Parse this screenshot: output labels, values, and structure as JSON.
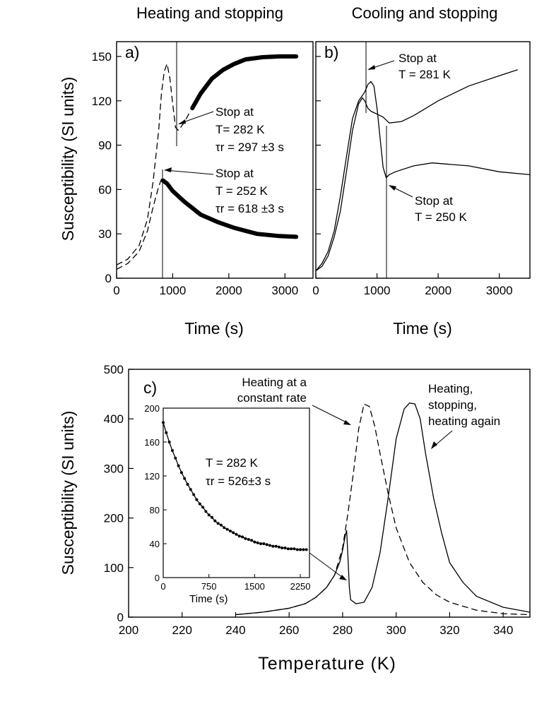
{
  "panels_titles": {
    "left": "Heating and stopping",
    "right": "Cooling and stopping"
  },
  "chart_data": [
    {
      "panel": "a)",
      "type": "line",
      "xlabel": "Time (s)",
      "ylabel": "Susceptibility (SI units)",
      "xlim": [
        0,
        3500
      ],
      "ylim": [
        0,
        160
      ],
      "xticks": [
        "0",
        "1000",
        "2000",
        "3000"
      ],
      "yticks": [
        "0",
        "30",
        "60",
        "90",
        "120",
        "150"
      ],
      "series": [
        {
          "style": "dashed",
          "x": [
            0,
            200,
            400,
            550,
            650,
            750,
            800,
            850,
            900,
            950,
            1000,
            1050,
            1100,
            1200,
            1300
          ],
          "y": [
            9,
            13,
            22,
            40,
            65,
            100,
            125,
            140,
            145,
            135,
            118,
            102,
            100,
            105,
            112
          ]
        },
        {
          "style": "dashed",
          "x": [
            0,
            200,
            400,
            550,
            650,
            750,
            800,
            830
          ],
          "y": [
            6,
            10,
            18,
            32,
            48,
            62,
            67,
            66
          ]
        },
        {
          "style": "thick",
          "x": [
            1350,
            1500,
            1700,
            1900,
            2100,
            2300,
            2600,
            2900,
            3200
          ],
          "y": [
            115,
            125,
            135,
            141,
            145,
            148,
            149.5,
            150,
            150
          ]
        },
        {
          "style": "thick",
          "x": [
            830,
            900,
            1000,
            1200,
            1500,
            1800,
            2100,
            2500,
            2900,
            3200
          ],
          "y": [
            66,
            64,
            59,
            52,
            43,
            38,
            34,
            30,
            28.5,
            28
          ]
        }
      ],
      "annotations": [
        {
          "lines": [
            "Stop at",
            "T= 282 K",
            "τr = 297 ±3 s"
          ]
        },
        {
          "lines": [
            "Stop at",
            "T = 252 K",
            "τr = 618 ±3 s"
          ]
        }
      ]
    },
    {
      "panel": "b)",
      "type": "line",
      "xlabel": "Time (s)",
      "xlim": [
        0,
        3500
      ],
      "ylim": [
        0,
        160
      ],
      "xticks": [
        "0",
        "1000",
        "2000",
        "3000"
      ],
      "series": [
        {
          "style": "solid",
          "x": [
            0,
            100,
            200,
            300,
            400,
            500,
            600,
            700,
            760,
            800,
            850,
            900,
            950,
            1000,
            1100,
            1200,
            1400,
            1600,
            2000,
            2500,
            3000,
            3300
          ],
          "y": [
            5,
            8,
            15,
            28,
            45,
            72,
            100,
            118,
            122,
            120,
            115,
            113,
            112,
            111,
            109,
            105,
            106,
            110,
            120,
            130,
            137,
            141
          ]
        },
        {
          "style": "solid",
          "x": [
            0,
            100,
            200,
            300,
            400,
            500,
            600,
            700,
            800,
            850,
            900,
            950,
            1000,
            1050,
            1100,
            1150,
            1200,
            1300,
            1600,
            1900,
            2500,
            3000,
            3500
          ],
          "y": [
            5,
            10,
            18,
            32,
            55,
            82,
            108,
            120,
            126,
            131,
            133,
            130,
            115,
            95,
            75,
            68,
            70,
            72,
            76,
            78,
            76,
            72,
            70
          ]
        }
      ],
      "annotations": [
        {
          "lines": [
            "Stop at",
            "T = 281 K"
          ]
        },
        {
          "lines": [
            "Stop at",
            "T = 250 K"
          ]
        }
      ]
    },
    {
      "panel": "c)",
      "type": "line",
      "xlabel": "Temperature (K)",
      "ylabel": "Susceptibility (SI units)",
      "xlim": [
        200,
        350
      ],
      "ylim": [
        0,
        500
      ],
      "xticks": [
        "200",
        "220",
        "240",
        "260",
        "280",
        "300",
        "320",
        "340"
      ],
      "yticks": [
        "0",
        "100",
        "200",
        "300",
        "400",
        "500"
      ],
      "series": [
        {
          "name": "Heating at a constant rate",
          "style": "dashed",
          "x": [
            240,
            250,
            260,
            266,
            270,
            274,
            277,
            280,
            282,
            284,
            286,
            288,
            290,
            292,
            294,
            297,
            300,
            305,
            310,
            315,
            320,
            330,
            340,
            350
          ],
          "y": [
            5,
            10,
            18,
            27,
            40,
            60,
            85,
            140,
            210,
            290,
            380,
            430,
            425,
            385,
            330,
            250,
            180,
            110,
            70,
            45,
            30,
            14,
            7,
            5
          ]
        },
        {
          "name": "Heating, stopping, heating again",
          "style": "solid",
          "x": [
            240,
            250,
            260,
            266,
            270,
            274,
            277,
            279,
            280,
            281,
            281.5,
            282,
            282.5,
            283,
            285,
            288,
            291,
            294,
            297,
            300,
            303,
            305,
            307,
            309,
            311,
            314,
            317,
            320,
            325,
            330,
            340,
            350
          ],
          "y": [
            5,
            10,
            18,
            27,
            40,
            60,
            85,
            112,
            135,
            165,
            175,
            120,
            60,
            35,
            27,
            30,
            60,
            130,
            240,
            360,
            420,
            432,
            430,
            400,
            330,
            240,
            170,
            110,
            70,
            42,
            20,
            10
          ]
        }
      ],
      "annotations": [
        {
          "lines": [
            "Heating at a",
            "constant rate"
          ]
        },
        {
          "lines": [
            "Heating,",
            "stopping,",
            "heating again"
          ]
        }
      ],
      "inset": {
        "type": "scatter",
        "xlabel": "Time (s)",
        "xlim": [
          0,
          2400
        ],
        "ylim": [
          0,
          200
        ],
        "xticks": [
          "0",
          "750",
          "1500",
          "2250"
        ],
        "yticks": [
          "0",
          "40",
          "80",
          "120",
          "160",
          "200"
        ],
        "points_x": [
          0,
          50,
          100,
          150,
          200,
          250,
          300,
          350,
          400,
          450,
          500,
          550,
          600,
          650,
          700,
          750,
          800,
          850,
          900,
          950,
          1000,
          1050,
          1100,
          1150,
          1200,
          1250,
          1300,
          1350,
          1400,
          1450,
          1500,
          1550,
          1600,
          1650,
          1700,
          1750,
          1800,
          1850,
          1900,
          1950,
          2000,
          2050,
          2100,
          2150,
          2200,
          2250,
          2300,
          2350
        ],
        "points_y": [
          183,
          171,
          160,
          150,
          141,
          132,
          124,
          117,
          110,
          104,
          98,
          92,
          87,
          83,
          78,
          74,
          71,
          67,
          64,
          62,
          59,
          57,
          55,
          53,
          51,
          49,
          48,
          46,
          45,
          44,
          42,
          41,
          40,
          40,
          39,
          38,
          37,
          37,
          36,
          35,
          35,
          34,
          34,
          34,
          33,
          33,
          33,
          33
        ],
        "annotation": {
          "lines": [
            "T = 282 K",
            "τr = 526±3 s"
          ]
        }
      }
    }
  ]
}
